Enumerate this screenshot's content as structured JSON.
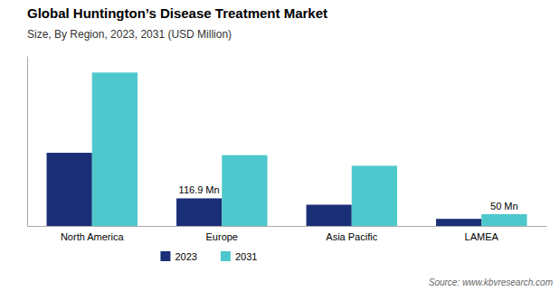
{
  "chart_data": {
    "type": "bar",
    "title": "Global Huntington’s Disease Treatment Market",
    "subtitle": "Size, By Region, 2023, 2031 (USD Million)",
    "source": "Source: www.kbvresearch.com",
    "categories": [
      "North America",
      "Europe",
      "Asia Pacific",
      "LAMEA"
    ],
    "series": [
      {
        "name": "2023",
        "color": "#1b2f78",
        "values": [
          310,
          116.9,
          90,
          30
        ]
      },
      {
        "name": "2031",
        "color": "#4ec8cc",
        "values": [
          650,
          300,
          255,
          50
        ]
      }
    ],
    "annotations": [
      {
        "text": "116.9 Mn",
        "category": "Europe",
        "series": "2023"
      },
      {
        "text": "50 Mn",
        "category": "LAMEA",
        "series": "2031"
      }
    ],
    "ylim": [
      0,
      720
    ],
    "grid": false,
    "legend": "bottom",
    "tick_labels": "x"
  }
}
